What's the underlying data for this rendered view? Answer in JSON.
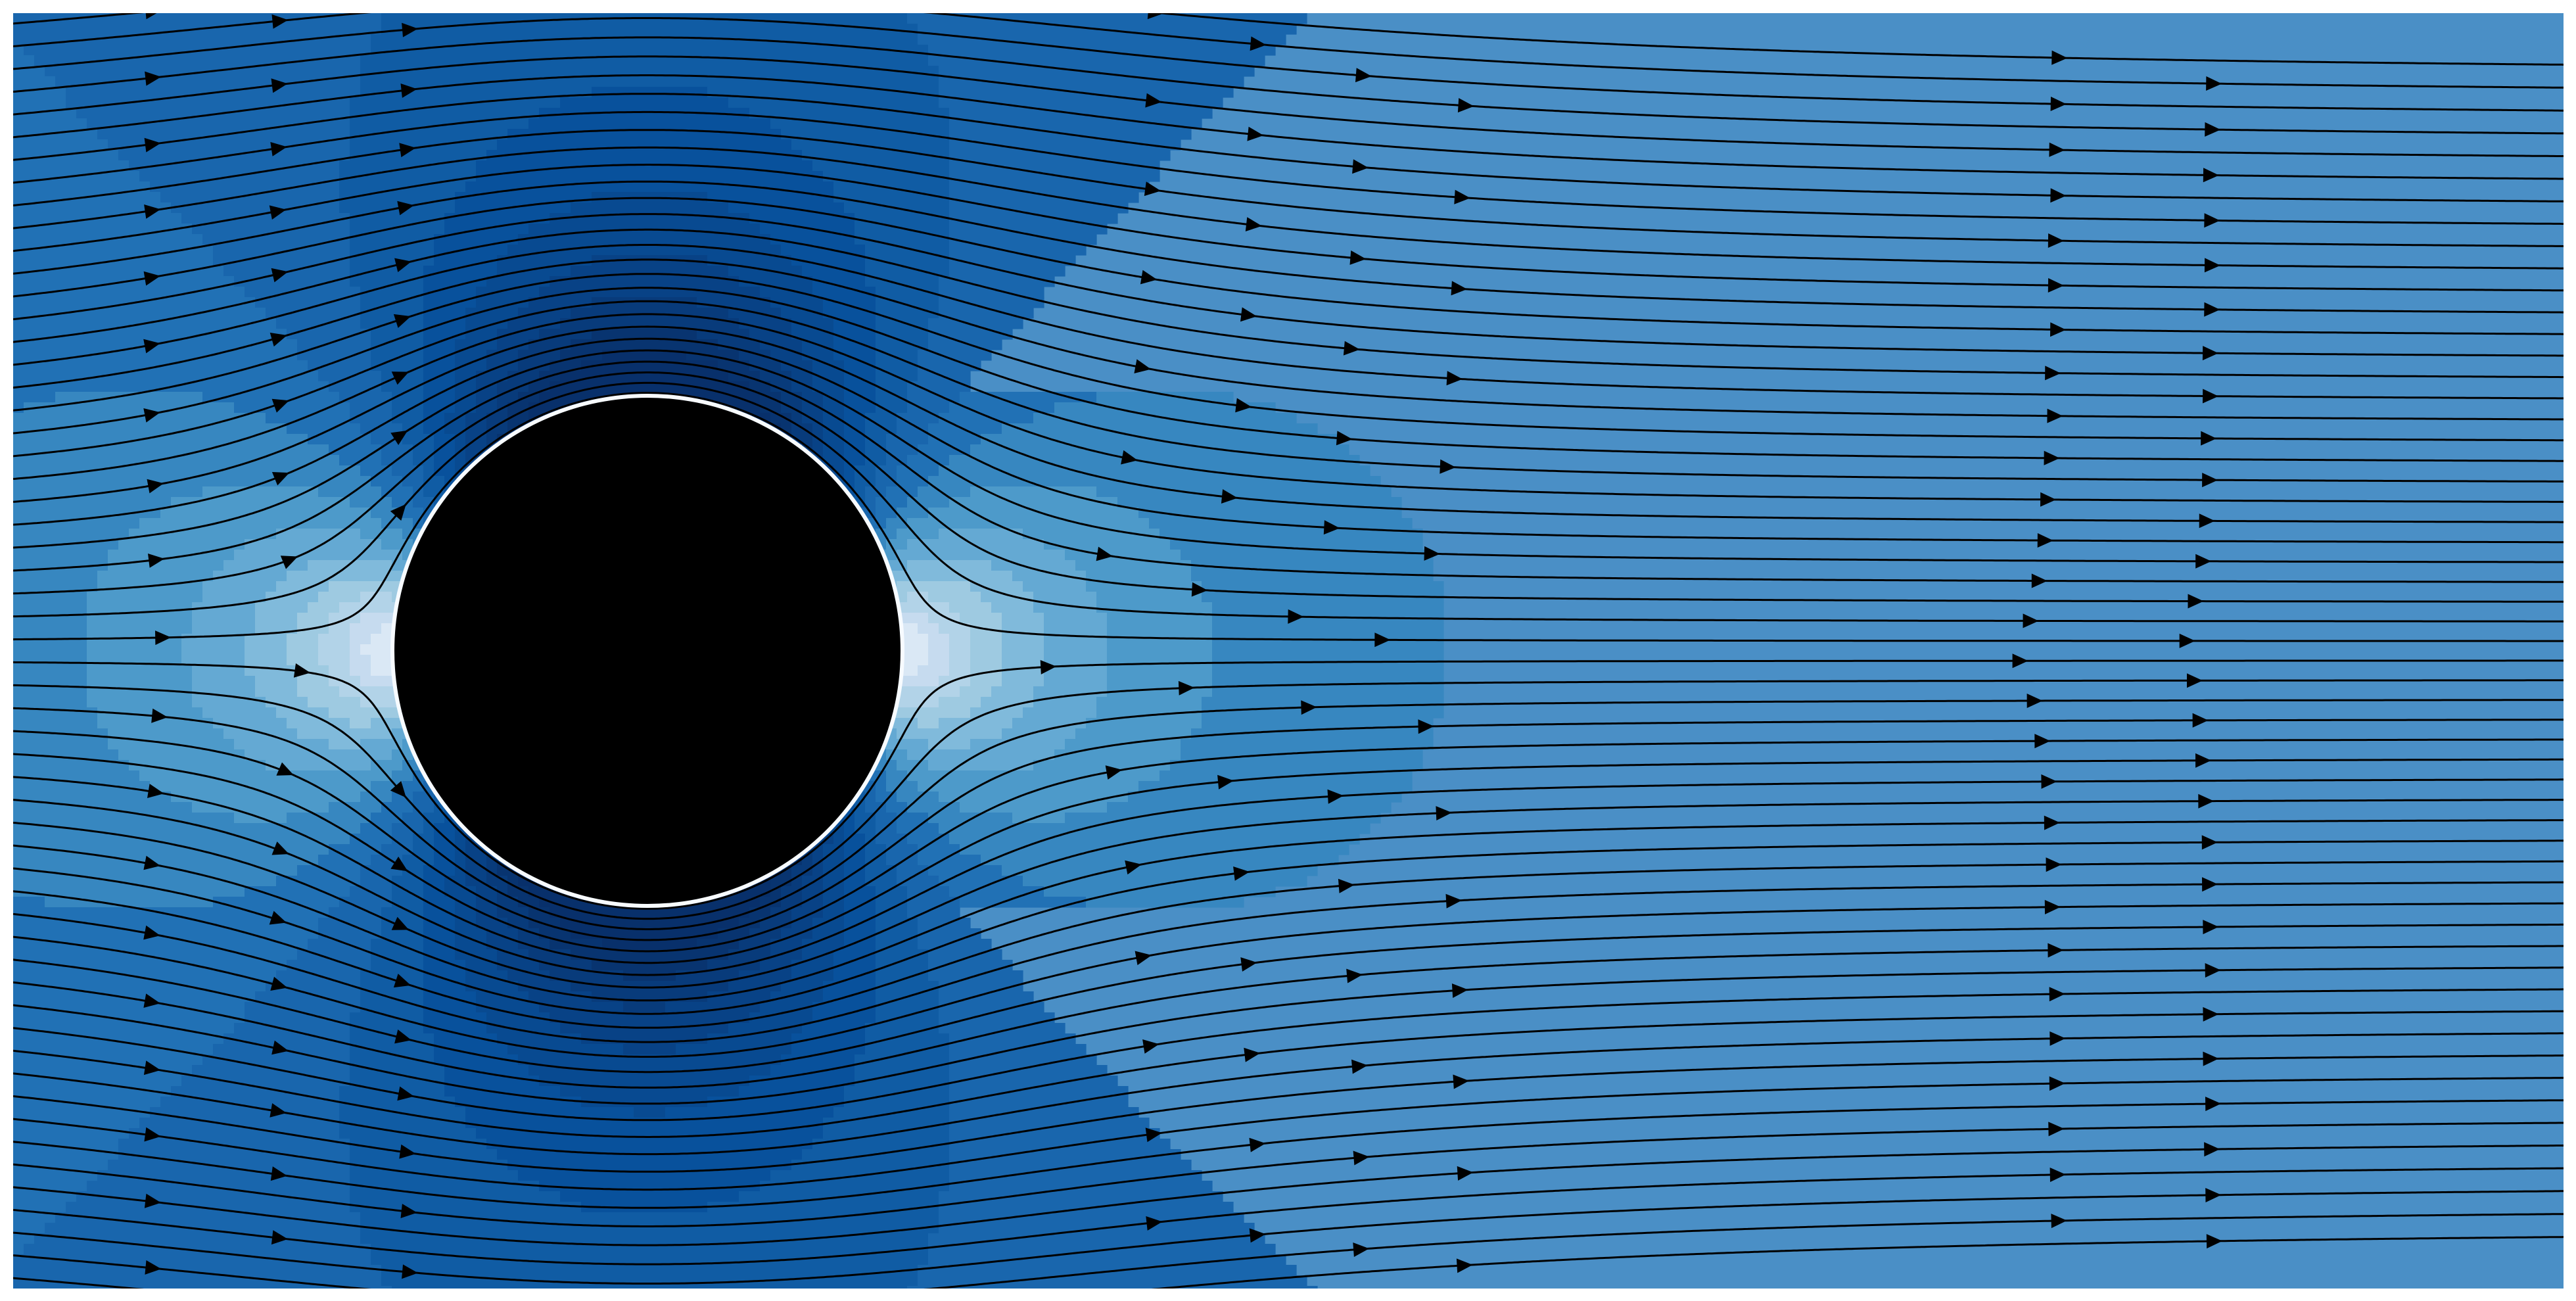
{
  "figure": {
    "kind": "potential flow past a cylinder",
    "elements": [
      "speed-contour-field",
      "streamlines",
      "direction-arrows",
      "cylinder"
    ]
  },
  "colors": {
    "background": "#ffffff",
    "far_field": "#4a8fc6",
    "fast_flank": "#08306b",
    "stagnation": "#f7fbff",
    "streamline": "#000000",
    "cylinder": "#000000"
  },
  "flow": {
    "direction": "left-to-right",
    "colormap": "Blues",
    "streamline_count": 56
  }
}
